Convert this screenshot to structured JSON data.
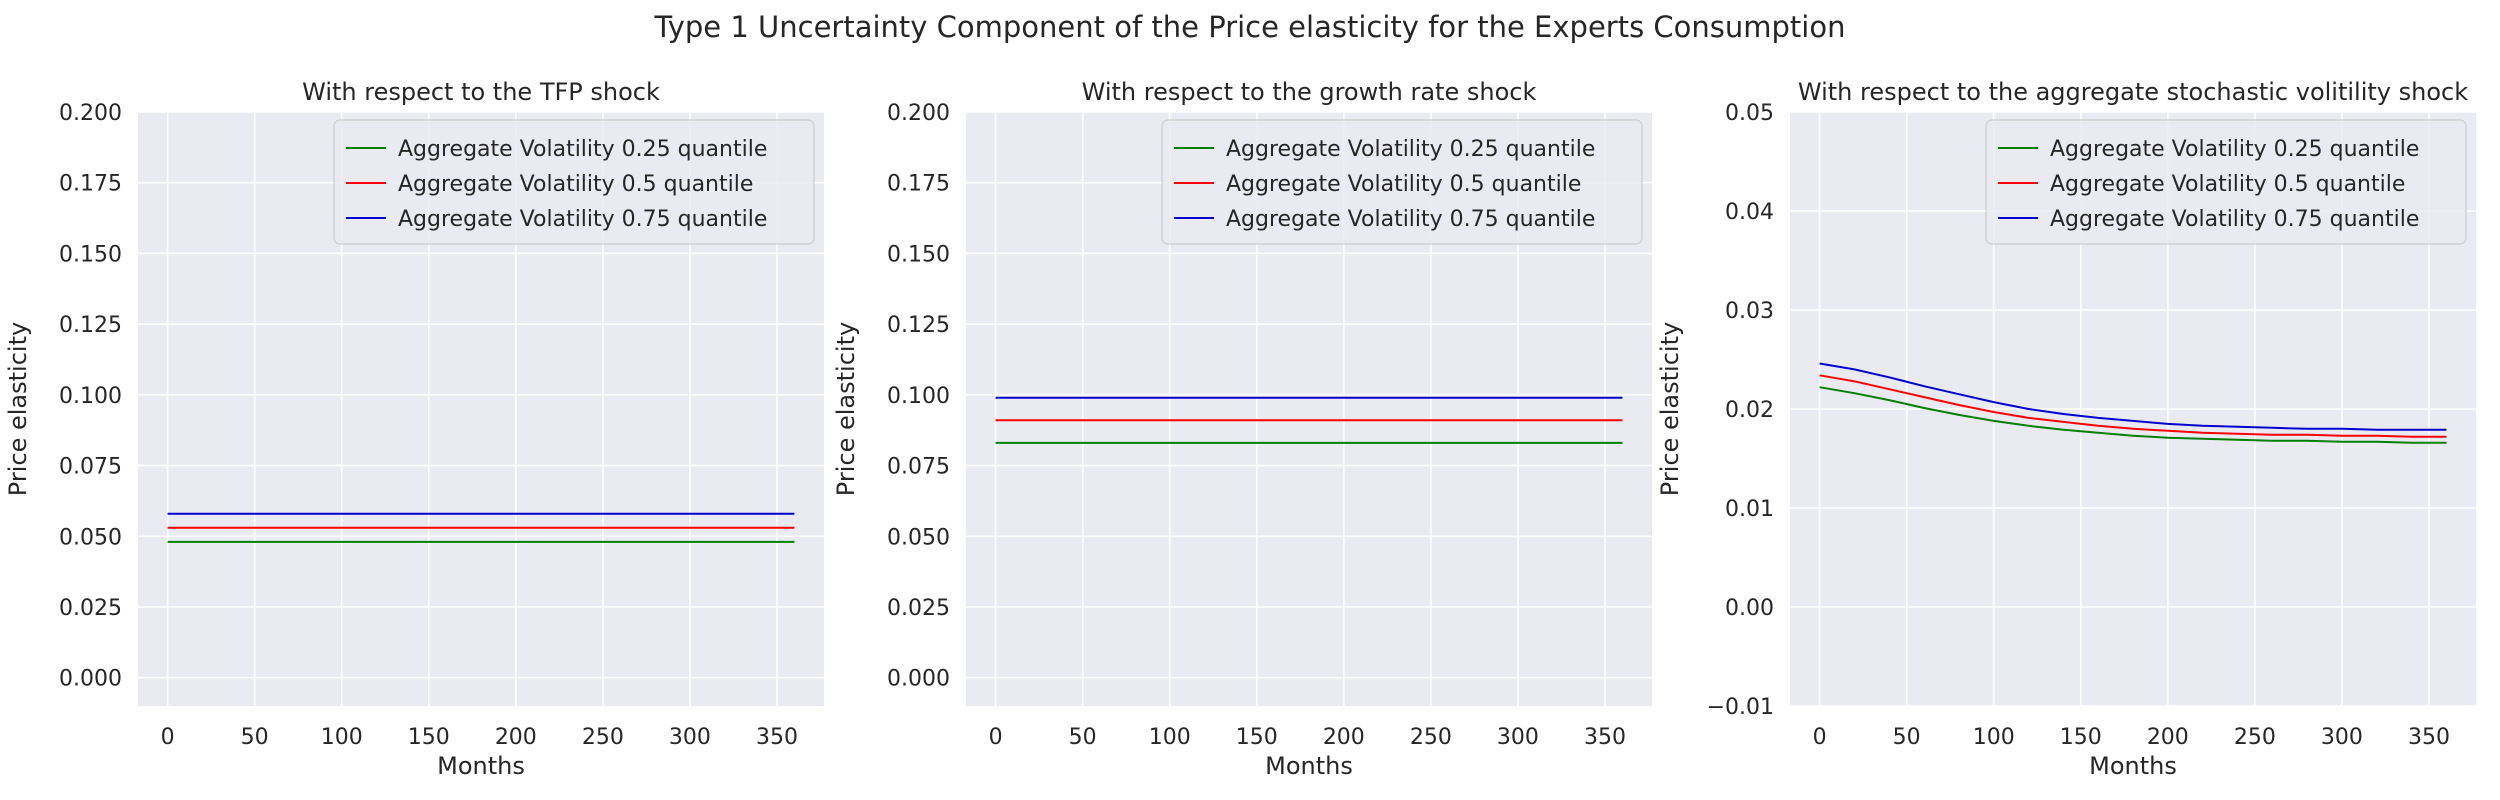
{
  "figure": {
    "suptitle": "Type 1 Uncertainty Component of the Price elasticity for the Experts Consumption"
  },
  "colors": {
    "background": "#eaeaf2",
    "grid": "#ffffff",
    "green": "#008000",
    "red": "#ff0000",
    "blue": "#0000cd"
  },
  "chart_data": [
    {
      "type": "line",
      "title": "With respect to the TFP shock",
      "xlabel": "Months",
      "ylabel": "Price elasticity",
      "xlim": [
        -17,
        377
      ],
      "ylim": [
        -0.01,
        0.2
      ],
      "xticks": [
        0,
        50,
        100,
        150,
        200,
        250,
        300,
        350
      ],
      "yticks": [
        0.0,
        0.025,
        0.05,
        0.075,
        0.1,
        0.125,
        0.15,
        0.175,
        0.2
      ],
      "ytick_labels": [
        "0.000",
        "0.025",
        "0.050",
        "0.075",
        "0.100",
        "0.125",
        "0.150",
        "0.175",
        "0.200"
      ],
      "grid": true,
      "legend_position": "top-right",
      "x": [
        0,
        40,
        80,
        120,
        160,
        200,
        240,
        280,
        320,
        360
      ],
      "series": [
        {
          "name": "Aggregate Volatility 0.25 quantile",
          "color": "#008000",
          "values": [
            0.048,
            0.048,
            0.048,
            0.048,
            0.048,
            0.048,
            0.048,
            0.048,
            0.048,
            0.048
          ]
        },
        {
          "name": "Aggregate Volatility 0.5 quantile",
          "color": "#ff0000",
          "values": [
            0.053,
            0.053,
            0.053,
            0.053,
            0.053,
            0.053,
            0.053,
            0.053,
            0.053,
            0.053
          ]
        },
        {
          "name": "Aggregate Volatility 0.75 quantile",
          "color": "#0000cd",
          "values": [
            0.058,
            0.058,
            0.058,
            0.058,
            0.058,
            0.058,
            0.058,
            0.058,
            0.058,
            0.058
          ]
        }
      ]
    },
    {
      "type": "line",
      "title": "With respect to the growth rate shock",
      "xlabel": "Months",
      "ylabel": "Price elasticity",
      "xlim": [
        -17,
        377
      ],
      "ylim": [
        -0.01,
        0.2
      ],
      "xticks": [
        0,
        50,
        100,
        150,
        200,
        250,
        300,
        350
      ],
      "yticks": [
        0.0,
        0.025,
        0.05,
        0.075,
        0.1,
        0.125,
        0.15,
        0.175,
        0.2
      ],
      "ytick_labels": [
        "0.000",
        "0.025",
        "0.050",
        "0.075",
        "0.100",
        "0.125",
        "0.150",
        "0.175",
        "0.200"
      ],
      "grid": true,
      "legend_position": "top-right",
      "x": [
        0,
        40,
        80,
        120,
        160,
        200,
        240,
        280,
        320,
        360
      ],
      "series": [
        {
          "name": "Aggregate Volatility 0.25 quantile",
          "color": "#008000",
          "values": [
            0.083,
            0.083,
            0.083,
            0.083,
            0.083,
            0.083,
            0.083,
            0.083,
            0.083,
            0.083
          ]
        },
        {
          "name": "Aggregate Volatility 0.5 quantile",
          "color": "#ff0000",
          "values": [
            0.091,
            0.091,
            0.091,
            0.091,
            0.091,
            0.091,
            0.091,
            0.091,
            0.091,
            0.091
          ]
        },
        {
          "name": "Aggregate Volatility 0.75 quantile",
          "color": "#0000cd",
          "values": [
            0.099,
            0.099,
            0.099,
            0.099,
            0.099,
            0.099,
            0.099,
            0.099,
            0.099,
            0.099
          ]
        }
      ]
    },
    {
      "type": "line",
      "title": "With respect to the aggregate stochastic volitility shock",
      "xlabel": "Months",
      "ylabel": "Price elasticity",
      "xlim": [
        -17,
        377
      ],
      "ylim": [
        -0.01,
        0.05
      ],
      "xticks": [
        0,
        50,
        100,
        150,
        200,
        250,
        300,
        350
      ],
      "yticks": [
        -0.01,
        0.0,
        0.01,
        0.02,
        0.03,
        0.04,
        0.05
      ],
      "ytick_labels": [
        "−0.01",
        "0.00",
        "0.01",
        "0.02",
        "0.03",
        "0.04",
        "0.05"
      ],
      "grid": true,
      "legend_position": "top-right",
      "x": [
        0,
        20,
        40,
        60,
        80,
        100,
        120,
        140,
        160,
        180,
        200,
        220,
        240,
        260,
        280,
        300,
        320,
        340,
        360
      ],
      "series": [
        {
          "name": "Aggregate Volatility 0.25 quantile",
          "color": "#008000",
          "values": [
            0.0222,
            0.0216,
            0.0209,
            0.0201,
            0.0194,
            0.0188,
            0.0183,
            0.0179,
            0.0176,
            0.0173,
            0.0171,
            0.017,
            0.0169,
            0.0168,
            0.0168,
            0.0167,
            0.0167,
            0.0166,
            0.0166
          ]
        },
        {
          "name": "Aggregate Volatility 0.5 quantile",
          "color": "#ff0000",
          "values": [
            0.0234,
            0.0228,
            0.022,
            0.0212,
            0.0204,
            0.0197,
            0.0191,
            0.0187,
            0.0183,
            0.018,
            0.0178,
            0.0176,
            0.0175,
            0.0174,
            0.0174,
            0.0173,
            0.0173,
            0.0172,
            0.0172
          ]
        },
        {
          "name": "Aggregate Volatility 0.75 quantile",
          "color": "#0000cd",
          "values": [
            0.0246,
            0.024,
            0.0232,
            0.0223,
            0.0215,
            0.0207,
            0.02,
            0.0195,
            0.0191,
            0.0188,
            0.0185,
            0.0183,
            0.0182,
            0.0181,
            0.018,
            0.018,
            0.0179,
            0.0179,
            0.0179
          ]
        }
      ]
    }
  ]
}
